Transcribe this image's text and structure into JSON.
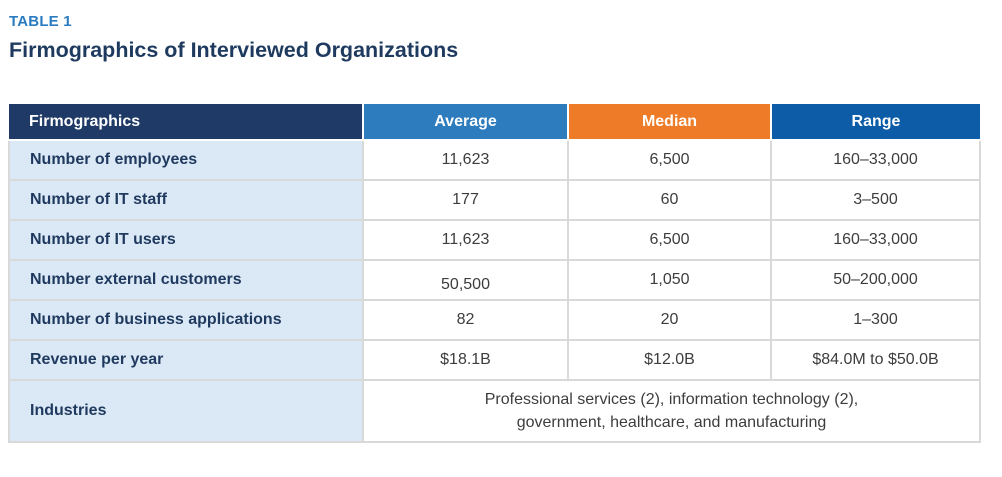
{
  "header": {
    "eyebrow": "TABLE 1",
    "title": "Firmographics of Interviewed Organizations"
  },
  "table": {
    "columns": [
      "Firmographics",
      "Average",
      "Median",
      "Range"
    ],
    "rows": [
      {
        "label": "Number of employees",
        "average": "11,623",
        "median": "6,500",
        "range": "160–33,000"
      },
      {
        "label": "Number of IT staff",
        "average": "177",
        "median": "60",
        "range": "3–500"
      },
      {
        "label": "Number of IT users",
        "average": "11,623",
        "median": "6,500",
        "range": "160–33,000"
      },
      {
        "label": "Number external customers",
        "average": "50,500",
        "median": "1,050",
        "range": "50–200,000"
      },
      {
        "label": "Number of business applications",
        "average": "82",
        "median": "20",
        "range": "1–300"
      },
      {
        "label": "Revenue per year",
        "average": "$18.1B",
        "median": "$12.0B",
        "range": "$84.0M to $50.0B"
      }
    ],
    "industries_row": {
      "label": "Industries",
      "value": "Professional services (2), information technology (2), government, healthcare, and manufacturing"
    }
  },
  "colors": {
    "eyebrow_blue": "#2b7bc1",
    "title_navy": "#1e3a5f",
    "header_firmographics_bg": "#1f3a66",
    "header_average_bg": "#2d7cbe",
    "header_median_bg": "#ee7b27",
    "header_range_bg": "#0d5ca8",
    "row_label_bg": "#dbe9f6",
    "row_label_text": "#1f3a5e",
    "value_text": "#3d3d3d",
    "grid_border": "#d9d9d9"
  }
}
